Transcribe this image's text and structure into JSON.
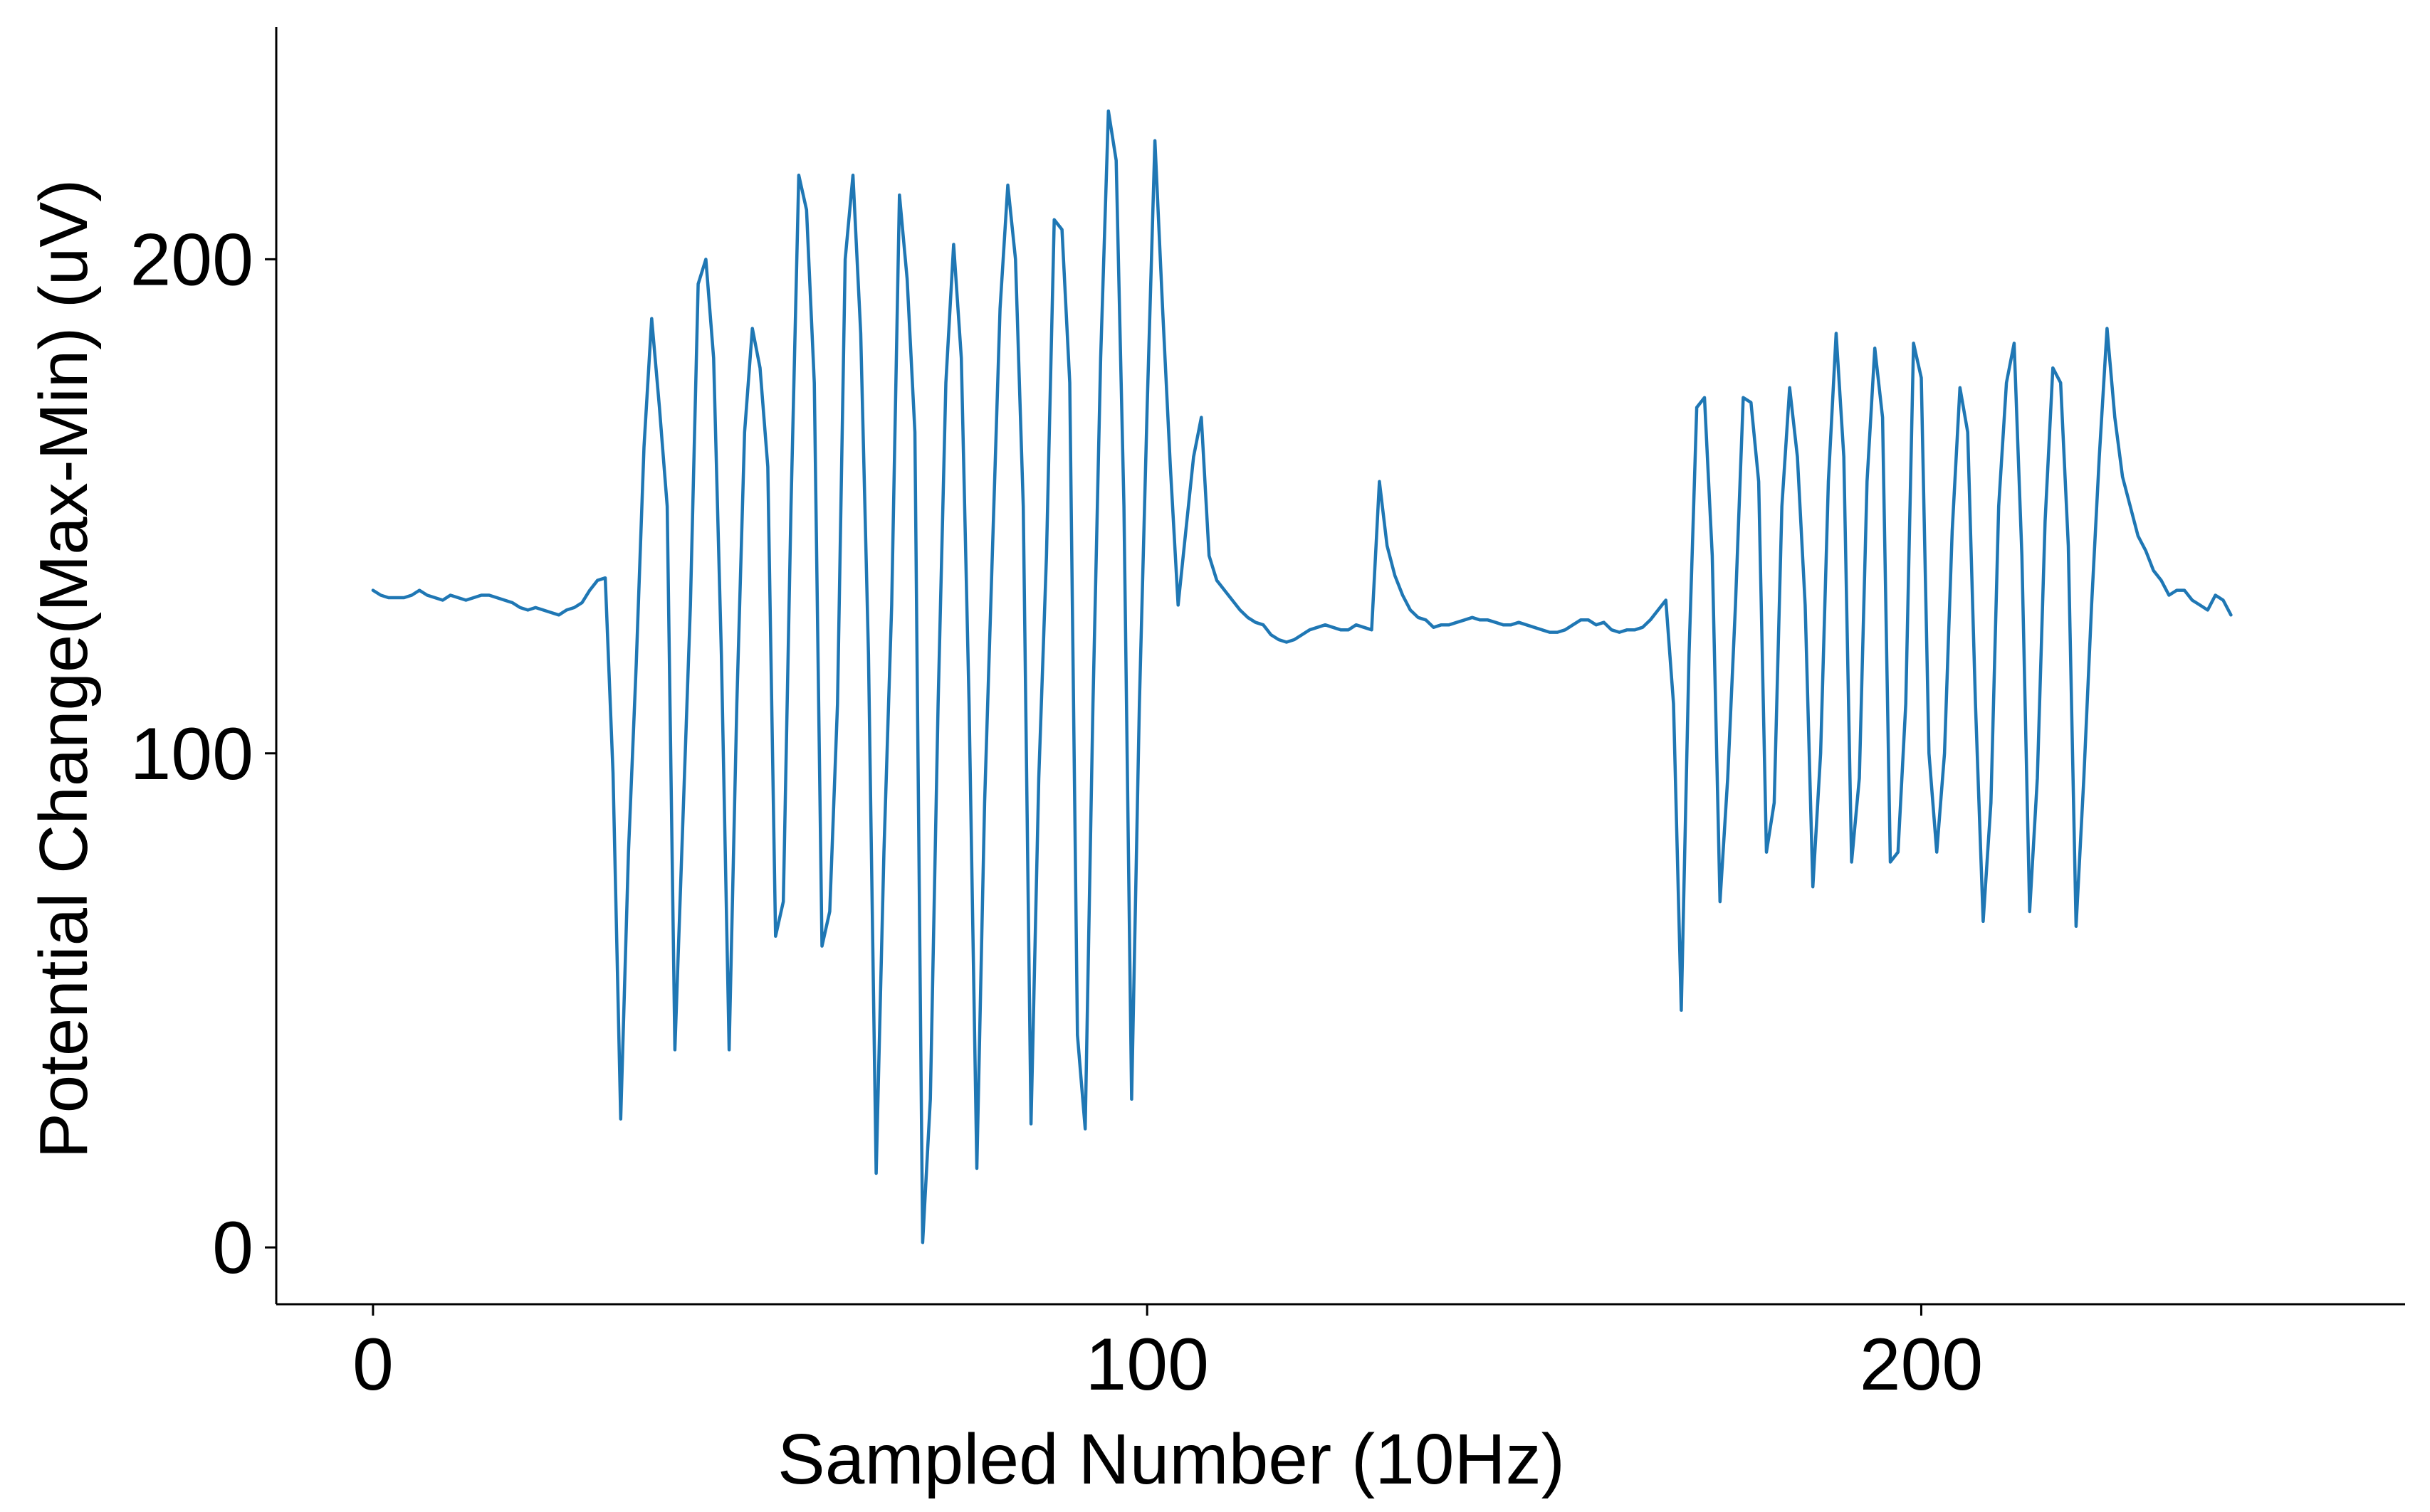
{
  "chart_data": {
    "type": "line",
    "title": "",
    "xlabel": "Sampled Number (10Hz)",
    "ylabel": "Potential Change(Max-Min) (uV)",
    "xlim": [
      -12.5,
      262.5
    ],
    "ylim": [
      -11.5,
      247
    ],
    "xticks": [
      0,
      100,
      200
    ],
    "yticks": [
      0,
      100,
      200
    ],
    "grid": false,
    "legend": "none",
    "colors": {
      "line": "#1f77b4",
      "axis": "#000000",
      "background": "#ffffff"
    },
    "series": [
      {
        "values": [
          133,
          132,
          131.5,
          131.5,
          131.5,
          132,
          133,
          132,
          131.5,
          131,
          132,
          131.5,
          131,
          131.5,
          132,
          132,
          131.5,
          131,
          130.5,
          129.5,
          129,
          129.5,
          129,
          128.5,
          128,
          129,
          129.5,
          130.5,
          133,
          135,
          135.5,
          96,
          26,
          80,
          118,
          162,
          188,
          170,
          150,
          40,
          85,
          130,
          195,
          200,
          180,
          120,
          40,
          110,
          165,
          186,
          178,
          158,
          63,
          70,
          150,
          217,
          210,
          175,
          61,
          68,
          110,
          200,
          217,
          185,
          120,
          15,
          80,
          130,
          213,
          196,
          165,
          1,
          30,
          110,
          175,
          203,
          180,
          110,
          16,
          90,
          140,
          190,
          215,
          200,
          150,
          25,
          95,
          140,
          208,
          206,
          175,
          43,
          24,
          110,
          180,
          230,
          220,
          150,
          30,
          110,
          170,
          224,
          190,
          158,
          130,
          145,
          160,
          168,
          140,
          135,
          133,
          131,
          129,
          127.5,
          126.5,
          126,
          124,
          123,
          122.5,
          123,
          124,
          125,
          125.5,
          126,
          125.5,
          125,
          125,
          126,
          125.5,
          125,
          155,
          142,
          136,
          132,
          129,
          127.5,
          127,
          125.5,
          126,
          126,
          126.5,
          127,
          127.5,
          127,
          127,
          126.5,
          126,
          126,
          126.5,
          126,
          125.5,
          125,
          124.5,
          124.5,
          125,
          126,
          127,
          127,
          126,
          126.5,
          125,
          124.5,
          125,
          125,
          125.5,
          127,
          129,
          131,
          110,
          48,
          120,
          170,
          172,
          140,
          70,
          95,
          130,
          172,
          171,
          155,
          80,
          90,
          150,
          174,
          160,
          130,
          73,
          100,
          155,
          185,
          160,
          78,
          95,
          155,
          182,
          168,
          78,
          80,
          110,
          183,
          176,
          100,
          80,
          100,
          145,
          174,
          165,
          110,
          66,
          90,
          150,
          175,
          183,
          140,
          68,
          95,
          147,
          178,
          175,
          142,
          65,
          95,
          130,
          160,
          186,
          168,
          156,
          150,
          144,
          141,
          137,
          135,
          132,
          133,
          133,
          131,
          130,
          129,
          132,
          131,
          128
        ]
      }
    ]
  }
}
